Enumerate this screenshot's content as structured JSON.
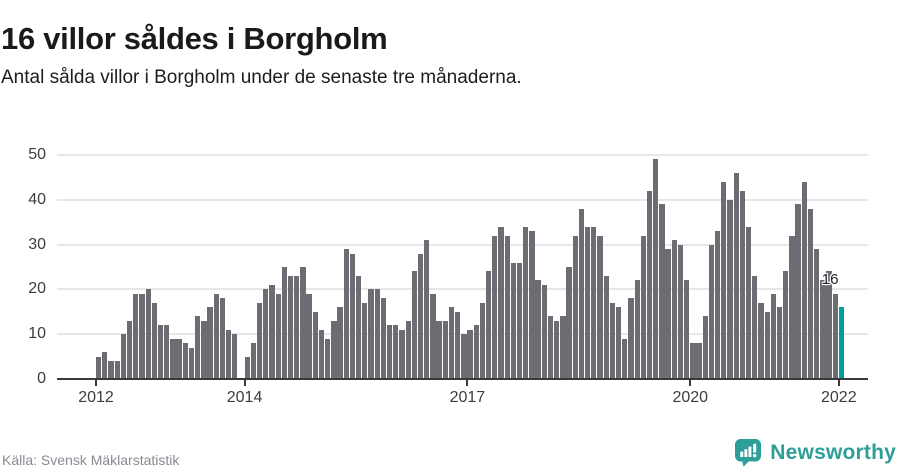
{
  "header": {
    "title": "16 villor såldes i Borgholm",
    "subtitle": "Antal sålda villor i Borgholm under de senaste tre månaderna."
  },
  "footer": {
    "source": "Källa: Svensk Mäklarstatistik",
    "logo_text": "Newsworthy",
    "logo_icon": "newsworthy-speech-bubble-chart-icon"
  },
  "colors": {
    "bar": "#6c6c72",
    "highlight": "#00a09a",
    "logo_teal": "#2d9e98",
    "grid": "#e7e7e7",
    "axis": "#3a3a3a",
    "tick_text": "#3d3d3d",
    "source_text": "#8a8a92",
    "title_text": "#1a1a1a"
  },
  "chart_data": {
    "type": "bar",
    "title": "16 villor såldes i Borgholm",
    "subtitle": "Antal sålda villor i Borgholm under de senaste tre månaderna.",
    "x_start": "2012-01",
    "x_frequency": "monthly",
    "values": [
      5,
      6,
      4,
      4,
      10,
      13,
      19,
      19,
      20,
      17,
      12,
      12,
      9,
      9,
      8,
      7,
      14,
      13,
      16,
      19,
      18,
      11,
      10,
      0,
      5,
      8,
      17,
      20,
      21,
      19,
      25,
      23,
      23,
      25,
      19,
      15,
      11,
      9,
      13,
      16,
      29,
      28,
      23,
      17,
      20,
      20,
      18,
      12,
      12,
      11,
      13,
      24,
      28,
      31,
      19,
      13,
      13,
      16,
      15,
      10,
      11,
      12,
      17,
      24,
      32,
      34,
      32,
      26,
      26,
      34,
      33,
      22,
      21,
      14,
      13,
      14,
      25,
      32,
      38,
      34,
      34,
      32,
      23,
      17,
      16,
      9,
      18,
      22,
      32,
      42,
      49,
      39,
      29,
      31,
      30,
      22,
      8,
      8,
      14,
      30,
      33,
      44,
      40,
      46,
      42,
      34,
      23,
      17,
      15,
      19,
      16,
      24,
      32,
      39,
      44,
      38,
      29,
      22,
      24,
      19,
      16
    ],
    "highlight_index": 120,
    "highlight_value_label": "16",
    "y_ticks": [
      0,
      10,
      20,
      30,
      40,
      50
    ],
    "ylim": [
      0,
      50
    ],
    "x_ticks": [
      {
        "index": 0,
        "label": "2012"
      },
      {
        "index": 24,
        "label": "2014"
      },
      {
        "index": 60,
        "label": "2017"
      },
      {
        "index": 96,
        "label": "2020"
      },
      {
        "index": 120,
        "label": "2022"
      }
    ],
    "grid": "horizontal",
    "legend": "none"
  }
}
